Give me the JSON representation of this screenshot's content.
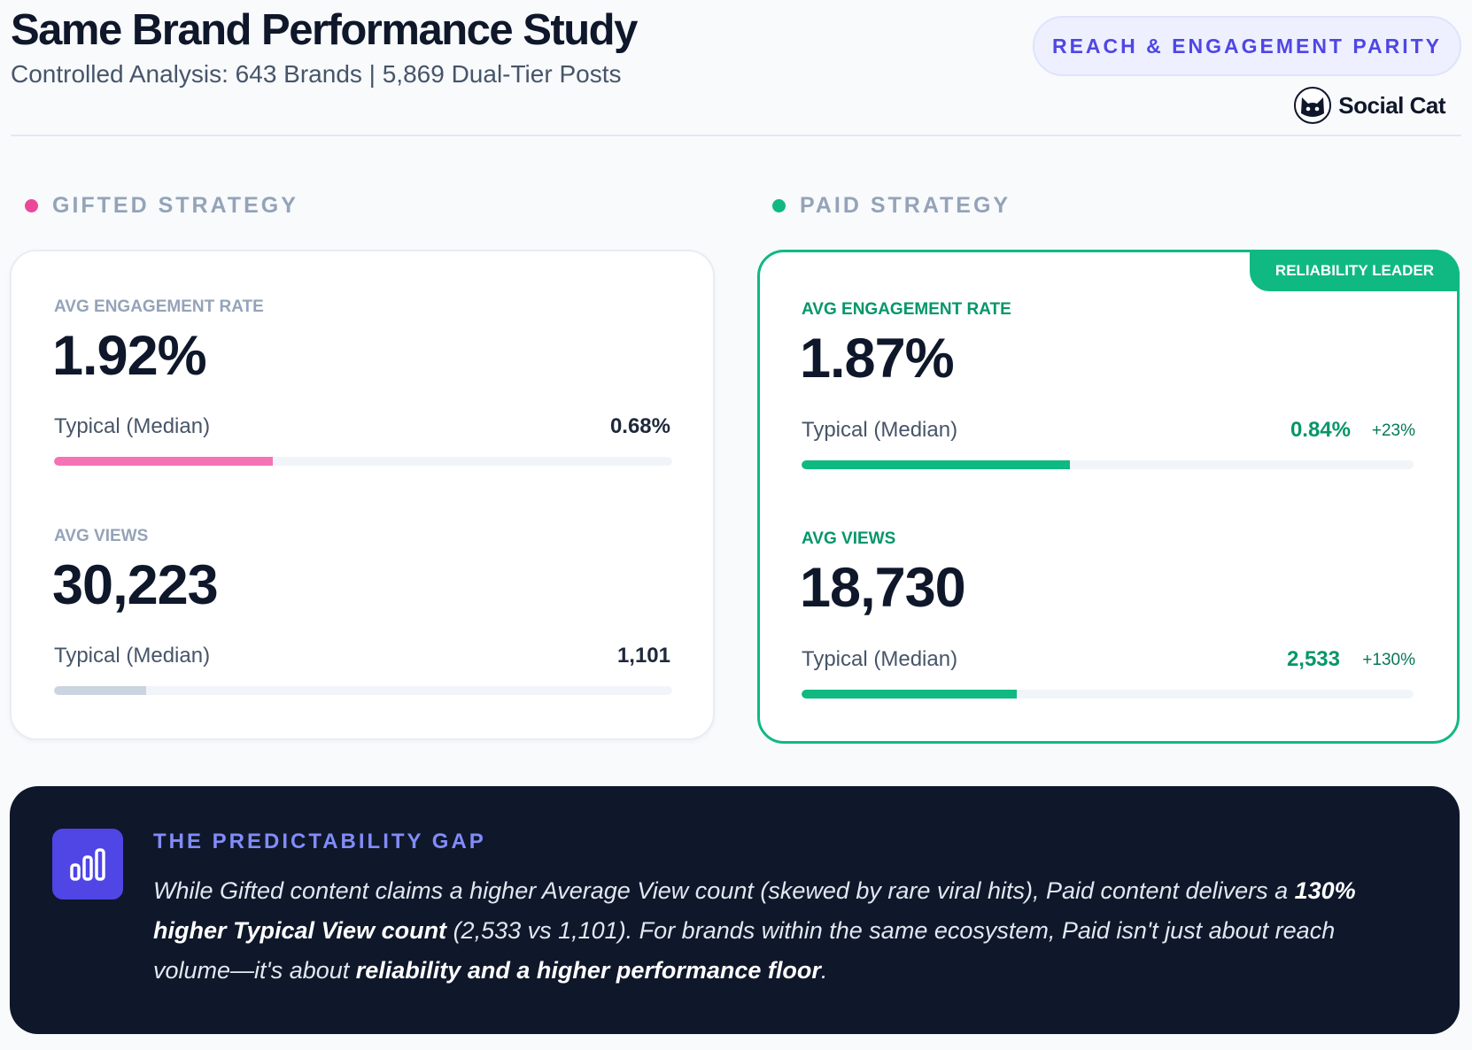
{
  "header": {
    "title": "Same Brand Performance Study",
    "subtitle": "Controlled Analysis: 643 Brands | 5,869 Dual-Tier Posts",
    "badge": "REACH & ENGAGEMENT PARITY",
    "brand_name": "Social Cat"
  },
  "gifted": {
    "section_label": "GIFTED STRATEGY",
    "color": "#ec4899",
    "engagement": {
      "label": "AVG ENGAGEMENT RATE",
      "value": "1.92%",
      "typical_label": "Typical (Median)",
      "typical_value": "0.68%",
      "bar_fraction": 0.354
    },
    "views": {
      "label": "AVG VIEWS",
      "value": "30,223",
      "typical_label": "Typical (Median)",
      "typical_value": "1,101",
      "bar_fraction": 0.149
    }
  },
  "paid": {
    "section_label": "PAID STRATEGY",
    "color": "#10b981",
    "ribbon": "RELIABILITY LEADER",
    "engagement": {
      "label": "AVG ENGAGEMENT RATE",
      "value": "1.87%",
      "typical_label": "Typical (Median)",
      "typical_value": "0.84%",
      "delta": "+23%",
      "bar_fraction": 0.438
    },
    "views": {
      "label": "AVG VIEWS",
      "value": "18,730",
      "typical_label": "Typical (Median)",
      "typical_value": "2,533",
      "delta": "+130%",
      "bar_fraction": 0.351
    }
  },
  "insight": {
    "title": "THE PREDICTABILITY GAP",
    "part1": "While Gifted content claims a higher Average View count (skewed by rare viral hits), Paid content delivers a ",
    "bold1": "130% higher Typical View count",
    "part2": " (2,533 vs 1,101). For brands within the same ecosystem, Paid isn't just about reach volume—it's about ",
    "bold2": "reliability and a higher performance floor",
    "part3": "."
  }
}
